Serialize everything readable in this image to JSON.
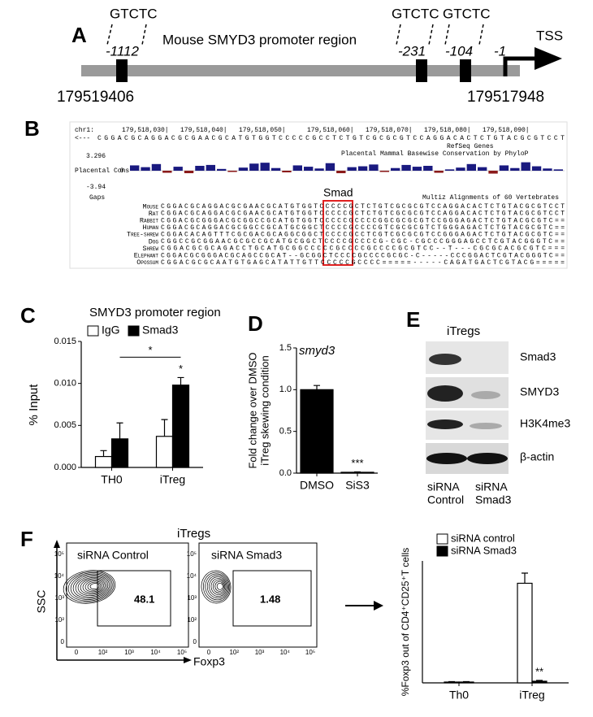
{
  "panel_a": {
    "letter": "A",
    "title": "Mouse SMYD3 promoter region",
    "motifs": [
      {
        "label": "GTCTC",
        "position": "-1112"
      },
      {
        "label": "GTCTC",
        "position": "-231"
      },
      {
        "label": "GTCTC",
        "position": "-104"
      }
    ],
    "tss_position": "-1",
    "tss_label": "TSS",
    "start_coord": "179519406",
    "end_coord": "179517948"
  },
  "panel_b": {
    "letter": "B",
    "ruler": [
      "chr1:",
      "179,518,030|",
      "179,518,040|",
      "179,518,050|",
      "179,518,060|",
      "179,518,070|",
      "179,518,080|",
      "179,518,090|"
    ],
    "strand": "<---",
    "reference_sequence": "CGGACGCAGGACGCGAACGCATGTGGTCCCCCGCCTCTGTCGCGCGTCCAGGACACTCTGTACGCGTCCT",
    "refseq_label": "RefSeq Genes",
    "cons_title": "Placental Mammal Basewise Conservation by PhyloP",
    "cons_label": "Placental Cons",
    "cons_ticks": [
      3.296,
      0,
      -3.94
    ],
    "cons_values": [
      1.2,
      0.8,
      1.5,
      -0.5,
      0.9,
      -0.6,
      1.1,
      1.3,
      0.4,
      -0.3,
      0.7,
      1.6,
      1.8,
      0.6,
      -0.4,
      1.2,
      0.9,
      0.5,
      1.7,
      -0.6,
      0.8,
      1.0,
      1.4,
      -0.3,
      0.6,
      1.3,
      0.9,
      1.1,
      -0.5,
      0.3,
      0.7,
      1.5,
      0.8,
      -0.7,
      1.2,
      0.6,
      1.9,
      1.0,
      0.5,
      0.3
    ],
    "cons_color": "#1a1a80",
    "cons_neg_color": "#8b1a1a",
    "gaps_label": "Gaps",
    "multiz_label": "Multiz Alignments of 60 Vertebrates",
    "smad_label": "Smad",
    "species": [
      {
        "name": "Mouse",
        "color": "#1a237e",
        "sequence": "CGGACGCAGGACGCGAACGCATGTGGTCCCCCGCTCTGTCGCGCGTCCAGGACACTCTGTACGCGTCCT"
      },
      {
        "name": "Rat",
        "color": "#1a237e",
        "sequence": "CGGACGCAGGACGCGAACGCATGTGGTCCCCCGCTCTGTCGCGCGTCCAGGACACTCTGTACGCGTCCT"
      },
      {
        "name": "Rabbit",
        "color": "#1a237e",
        "sequence": "CGGACGCGGGACGCGGCCGCATGTGGTCCCCCGCCCCGGCGCGCGTCCGGGAGACTCTGTACGCGTC=="
      },
      {
        "name": "Human",
        "color": "#2e7d32",
        "sequence": "CGGACGCAGGACGCGGCCGCATGCGGCTCCCCGCCCCGTCGCGCGTCTGGGAGACTCTGTACGCGTC=="
      },
      {
        "name": "Tree-shrew",
        "color": "#2e7d32",
        "sequence": "CGGACACAGTTTCGCGACGCAGGCGGCTCCCCGCCTCGTCGCGCGTCCGGGAGACTCTGTACGCGTC=="
      },
      {
        "name": "Dog",
        "color": "#1a237e",
        "sequence": "CGGCCGCGGAACGCGCCGCATGCGGCTCCCCGCCCCG-CGC-CGCCCGGGAGCCTCGTACGGGTC=="
      },
      {
        "name": "Shrew",
        "color": "#1a237e",
        "sequence": "CGGACGCGCAGACCTGCATGCGGCCCCCGCCCCGCCCCGCGTCC--T---CGCGCACGCGTC==="
      },
      {
        "name": "Elephant",
        "color": "#2e7d32",
        "sequence": "CGGACGCGGGACGCAGCCGCAT--GCGGCTCCCCGCCCCGCGC-C-----CCCGGACTCGTACGGGTC=="
      },
      {
        "name": "Opossum",
        "color": "#2e7d32",
        "sequence": "CGGACGCGCAATGTGAGCATATTGTTCCCCCGCCCC=====-----CAGATGACTCGTACG====="
      }
    ]
  },
  "chart_data": [
    {
      "type": "bar",
      "panel": "C",
      "title": "SMYD3 promoter region",
      "y_label": "% Input",
      "categories": [
        "TH0",
        "iTreg"
      ],
      "series": [
        {
          "name": "IgG",
          "color": "#ffffff",
          "values": [
            0.0013,
            0.0037
          ],
          "errors": [
            0.0007,
            0.002
          ]
        },
        {
          "name": "Smad3",
          "color": "#000000",
          "values": [
            0.0034,
            0.0098
          ],
          "errors": [
            0.0019,
            0.0009
          ]
        }
      ],
      "ylim": [
        0,
        0.015
      ],
      "yticks": [
        {
          "value": 0,
          "label": "0.000"
        },
        {
          "value": 0.005,
          "label": "0.005"
        },
        {
          "value": 0.01,
          "label": "0.010"
        },
        {
          "value": 0.015,
          "label": "0.015"
        }
      ],
      "comparison_label": "*",
      "bar_label": "*"
    },
    {
      "type": "bar",
      "panel": "D",
      "title": "smyd3",
      "y_label": [
        "Fold change over DMSO",
        "iTreg skewing condition"
      ],
      "categories": [
        "DMSO",
        "SiS3"
      ],
      "series": [
        {
          "color": "#000000",
          "values": [
            1.0,
            0.01
          ],
          "errors": [
            0.05,
            0.005
          ]
        }
      ],
      "ylim": [
        0,
        1.5
      ],
      "yticks": [
        {
          "value": 0,
          "label": "0.0"
        },
        {
          "value": 0.5,
          "label": "0.5"
        },
        {
          "value": 1,
          "label": "1.0"
        },
        {
          "value": 1.5,
          "label": "1.5"
        }
      ],
      "bar_label": "***"
    },
    {
      "type": "bar",
      "panel": "F",
      "y_label": "%Foxp3 out of CD4⁺CD25⁺T cells",
      "categories": [
        "Th0",
        "iTreg"
      ],
      "series": [
        {
          "name": "siRNA control",
          "color": "#ffffff",
          "values": [
            0.2,
            24.5
          ],
          "errors": [
            0.1,
            2.5
          ]
        },
        {
          "name": "siRNA Smad3",
          "color": "#000000",
          "values": [
            0.2,
            0.4
          ],
          "errors": [
            0.1,
            0.2
          ]
        }
      ],
      "ylim": [
        0,
        30
      ],
      "bar_label": "**"
    }
  ],
  "panel_e": {
    "letter": "E",
    "group": "iTregs",
    "blots": [
      "Smad3",
      "SMYD3",
      "H3K4me3",
      "β-actin"
    ],
    "lanes": [
      [
        "siRNA",
        "Control"
      ],
      [
        "siRNA",
        "Smad3"
      ]
    ]
  },
  "panel_f": {
    "letter": "F",
    "group": "iTregs",
    "y_label": "SSC",
    "x_label": "Foxp3",
    "axis_ticks": [
      "0",
      "10²",
      "10³",
      "10⁴",
      "10⁵"
    ],
    "plots": [
      {
        "title": "siRNA Control",
        "gate_percent": 48.1
      },
      {
        "title": "siRNA Smad3",
        "gate_percent": 1.48
      }
    ]
  }
}
